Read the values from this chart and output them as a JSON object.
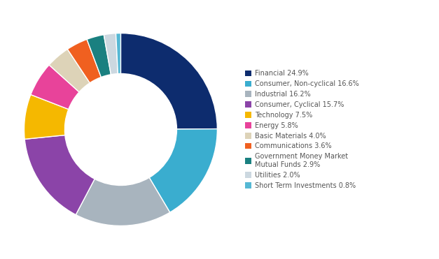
{
  "labels": [
    "Financial 24.9%",
    "Consumer, Non-cyclical 16.6%",
    "Industrial 16.2%",
    "Consumer, Cyclical 15.7%",
    "Technology 7.5%",
    "Energy 5.8%",
    "Basic Materials 4.0%",
    "Communications 3.6%",
    "Government Money Market\nMutual Funds 2.9%",
    "Utilities 2.0%",
    "Short Term Investments 0.8%"
  ],
  "values": [
    24.9,
    16.6,
    16.2,
    15.7,
    7.5,
    5.8,
    4.0,
    3.6,
    2.9,
    2.0,
    0.8
  ],
  "colors": [
    "#0d2c6e",
    "#3aadcf",
    "#a8b4be",
    "#8b44a8",
    "#f5b800",
    "#e8439a",
    "#ddd3b8",
    "#f06020",
    "#1a8080",
    "#ccd8e0",
    "#55b8d4"
  ],
  "startangle": 90,
  "donut_width": 0.42,
  "figsize": [
    6.27,
    3.71
  ],
  "dpi": 100
}
